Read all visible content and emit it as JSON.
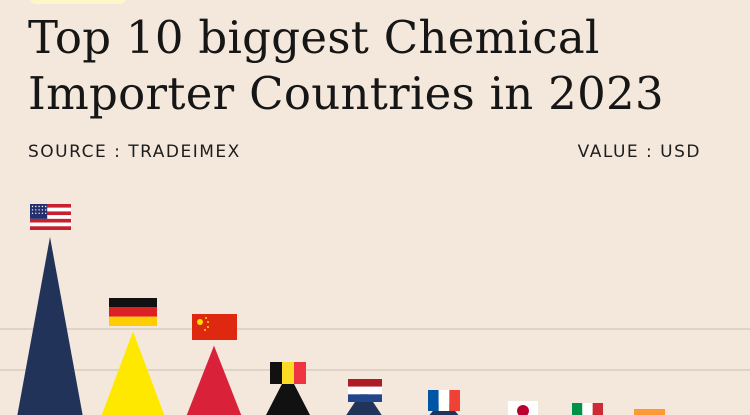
{
  "title": "Top 10 biggest Chemical Importer Countries in 2023",
  "source": "SOURCE : TRADEIMEX",
  "value_unit": "VALUE : USD",
  "colors": {
    "background": "#f4e8dc",
    "gridline": "#d2c6ba"
  },
  "chart_data": {
    "type": "bar",
    "categories": [
      "United States",
      "Germany",
      "China",
      "Belgium",
      "Netherlands",
      "France",
      "Japan",
      "Italy",
      "India",
      ""
    ],
    "values": [
      100,
      47,
      39,
      24,
      15,
      10,
      4,
      3,
      1,
      null
    ],
    "value_scale": "relative, unlabeled in original",
    "mark": "triangle",
    "bar_colors": [
      "#22335a",
      "#ffe800",
      "#d9223a",
      "#111111",
      "#22335a",
      "#22335a",
      "#d9223a",
      "#1b8a3a",
      "#ee9a39",
      null
    ],
    "flags": [
      "us-flag",
      "germany-flag",
      "china-flag",
      "belgium-flag",
      "netherlands-flag",
      "france-flag",
      "japan-flag",
      "italy-flag",
      "india-flag",
      null
    ],
    "grid": true,
    "xlabel": "",
    "ylabel": ""
  }
}
